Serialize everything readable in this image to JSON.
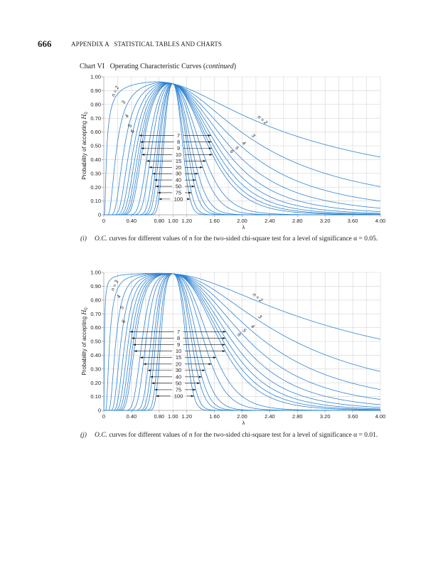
{
  "header": {
    "page_number": "666",
    "running_head": "APPENDIX A   STATISTICAL TABLES AND CHARTS"
  },
  "chart_title": {
    "prefix": "Chart VI   Operating Characteristic Curves (",
    "italic": "continued",
    "suffix": ")"
  },
  "colors": {
    "curve": "#2f83d3",
    "grid": "#d4d4d4"
  },
  "chart_data": [
    {
      "type": "line",
      "xlabel": "λ",
      "ylabel": {
        "text": "Probability of accepting ",
        "var": "H",
        "sub": "0"
      },
      "xlim": [
        0,
        4.0
      ],
      "ylim": [
        0,
        1.0
      ],
      "grid": true,
      "x_tick_labels": [
        "0",
        "0.40",
        "0.80",
        "1.00",
        "1.20",
        "1.60",
        "2.00",
        "2.40",
        "2.80",
        "3.20",
        "3.60",
        "4.00"
      ],
      "x_tick_values": [
        0,
        0.4,
        0.8,
        1.0,
        1.2,
        1.6,
        2.0,
        2.4,
        2.8,
        3.2,
        3.6,
        4.0
      ],
      "y_tick_labels": [
        "1.00",
        "0.90",
        "0.80",
        "0.70",
        "0.60",
        "0.50",
        "0.40",
        "0.30",
        "0.20",
        "0.10",
        "0"
      ],
      "y_tick_values": [
        1,
        0.9,
        0.8,
        0.7,
        0.6,
        0.5,
        0.4,
        0.3,
        0.2,
        0.1,
        0
      ],
      "alpha": 0.05,
      "n_values": [
        2,
        3,
        4,
        5,
        6,
        7,
        8,
        9,
        10,
        15,
        20,
        30,
        40,
        50,
        75,
        100
      ],
      "peak_at_lambda_1": 0.95,
      "n2_value_at_lambda_4": 0.45,
      "arrow_labels": [
        {
          "text": "7",
          "n": 7,
          "y": 0.575
        },
        {
          "text": "8",
          "n": 8,
          "y": 0.528
        },
        {
          "text": "9",
          "n": 9,
          "y": 0.482
        },
        {
          "text": "10",
          "n": 10,
          "y": 0.436
        },
        {
          "text": "15",
          "n": 15,
          "y": 0.39
        },
        {
          "text": "20",
          "n": 20,
          "y": 0.344
        },
        {
          "text": "30",
          "n": 30,
          "y": 0.298
        },
        {
          "text": "40",
          "n": 40,
          "y": 0.252
        },
        {
          "text": "50",
          "n": 50,
          "y": 0.206
        },
        {
          "text": "75",
          "n": 75,
          "y": 0.16
        },
        {
          "text": "100",
          "n": 100,
          "y": 0.114
        }
      ],
      "left_curve_labels": [
        {
          "text": "n = 2",
          "n": 2,
          "y": 0.89
        },
        {
          "text": "3",
          "n": 3,
          "y": 0.81
        },
        {
          "text": "4",
          "n": 4,
          "y": 0.71
        },
        {
          "text": "5",
          "n": 5,
          "y": 0.64
        },
        {
          "text": "6",
          "n": 6,
          "y": 0.6
        }
      ],
      "right_curve_labels": [
        {
          "text": "n = 2",
          "n": 2,
          "y": 0.67
        },
        {
          "text": "3",
          "n": 3,
          "y": 0.555
        },
        {
          "text": "4",
          "n": 4,
          "y": 0.5
        },
        {
          "text": "5",
          "n": 5,
          "y": 0.465
        },
        {
          "text": "6",
          "n": 6,
          "y": 0.44
        }
      ],
      "caption": {
        "label": "(i)",
        "abbr": "O.C.",
        "t1": " curves for different values of ",
        "var": "n",
        "t2": " for the two-sided chi-square test for a level of significance α = 0.05."
      }
    },
    {
      "type": "line",
      "xlabel": "λ",
      "ylabel": {
        "text": "Probability of accepting ",
        "var": "H",
        "sub": "0"
      },
      "xlim": [
        0,
        4.0
      ],
      "ylim": [
        0,
        1.0
      ],
      "grid": true,
      "x_tick_labels": [
        "0",
        "0.40",
        "0.80",
        "1.00",
        "1.20",
        "1.60",
        "2.00",
        "2.40",
        "2.80",
        "3.20",
        "3.60",
        "4.00"
      ],
      "x_tick_values": [
        0,
        0.4,
        0.8,
        1.0,
        1.2,
        1.6,
        2.0,
        2.4,
        2.8,
        3.2,
        3.6,
        4.0
      ],
      "y_tick_labels": [
        "1.00",
        "0.90",
        "0.80",
        "0.70",
        "0.60",
        "0.50",
        "0.40",
        "0.30",
        "0.20",
        "0.10",
        "0"
      ],
      "y_tick_values": [
        1,
        0.9,
        0.8,
        0.7,
        0.6,
        0.5,
        0.4,
        0.3,
        0.2,
        0.1,
        0
      ],
      "alpha": 0.01,
      "n_values": [
        2,
        3,
        4,
        5,
        6,
        7,
        8,
        9,
        10,
        15,
        20,
        30,
        40,
        50,
        75,
        100
      ],
      "peak_at_lambda_1": 0.99,
      "n2_value_at_lambda_4": 0.5,
      "arrow_labels": [
        {
          "text": "7",
          "n": 7,
          "y": 0.57
        },
        {
          "text": "8",
          "n": 8,
          "y": 0.523
        },
        {
          "text": "9",
          "n": 9,
          "y": 0.476
        },
        {
          "text": "10",
          "n": 10,
          "y": 0.43
        },
        {
          "text": "15",
          "n": 15,
          "y": 0.383
        },
        {
          "text": "20",
          "n": 20,
          "y": 0.336
        },
        {
          "text": "30",
          "n": 30,
          "y": 0.29
        },
        {
          "text": "40",
          "n": 40,
          "y": 0.243
        },
        {
          "text": "50",
          "n": 50,
          "y": 0.197
        },
        {
          "text": "75",
          "n": 75,
          "y": 0.15
        },
        {
          "text": "100",
          "n": 100,
          "y": 0.104
        }
      ],
      "left_curve_labels": [
        {
          "text": "n = 3",
          "n": 3,
          "y": 0.9
        },
        {
          "text": "4",
          "n": 4,
          "y": 0.82
        },
        {
          "text": "5",
          "n": 5,
          "y": 0.74
        },
        {
          "text": "6",
          "n": 6,
          "y": 0.64
        }
      ],
      "right_curve_labels": [
        {
          "text": "n = 2",
          "n": 2,
          "y": 0.8
        },
        {
          "text": "3",
          "n": 3,
          "y": 0.66
        },
        {
          "text": "4",
          "n": 4,
          "y": 0.59
        },
        {
          "text": "5",
          "n": 5,
          "y": 0.56
        },
        {
          "text": "6",
          "n": 6,
          "y": 0.53
        }
      ],
      "caption": {
        "label": "(j)",
        "abbr": "O.C.",
        "t1": " curves for different values of ",
        "var": "n",
        "t2": " for the two-sided chi-square test for a level of significance α = 0.01."
      }
    }
  ]
}
